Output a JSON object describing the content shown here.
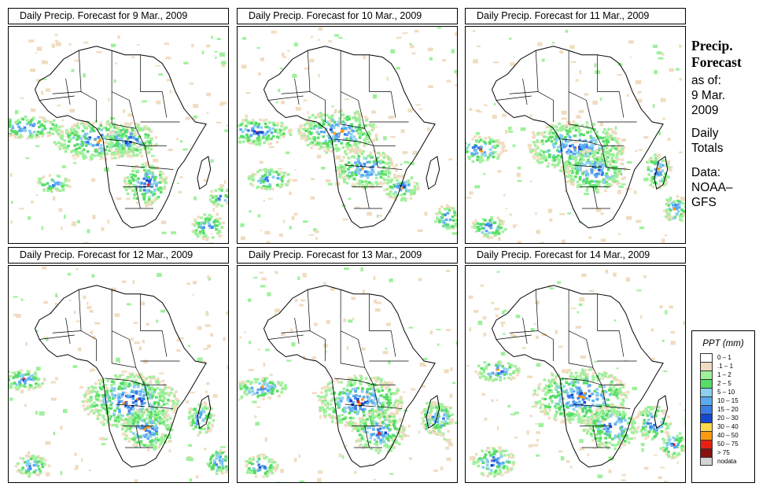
{
  "panels": [
    {
      "title": "Daily Precip. Forecast for  9 Mar., 2009"
    },
    {
      "title": "Daily Precip. Forecast for  10 Mar., 2009"
    },
    {
      "title": "Daily Precip. Forecast for  11 Mar., 2009"
    },
    {
      "title": "Daily Precip. Forecast for  12 Mar., 2009"
    },
    {
      "title": "Daily Precip. Forecast for  13 Mar., 2009"
    },
    {
      "title": "Daily Precip. Forecast for  14 Mar., 2009"
    }
  ],
  "sidebar": {
    "heading_line1": "Precip.",
    "heading_line2": "Forecast",
    "asof_line1": "as of:",
    "asof_line2": "9 Mar.",
    "asof_line3": "2009",
    "type_line1": "Daily",
    "type_line2": "Totals",
    "source_line1": "Data:",
    "source_line2": "NOAA–",
    "source_line3": "GFS"
  },
  "legend": {
    "title": "PPT (mm)",
    "entries": [
      {
        "label": "0 – 1",
        "color": "#ffffff"
      },
      {
        "label": ".1 – 1",
        "color": "#f0dcc0"
      },
      {
        "label": "1 – 2",
        "color": "#9ef09a"
      },
      {
        "label": "2 – 5",
        "color": "#55dd66"
      },
      {
        "label": "5 – 10",
        "color": "#8ccfee"
      },
      {
        "label": "10 – 15",
        "color": "#5aaaf0"
      },
      {
        "label": "15 – 20",
        "color": "#3a7ee8"
      },
      {
        "label": "20 – 30",
        "color": "#1448d0"
      },
      {
        "label": "30 – 40",
        "color": "#ffd84a"
      },
      {
        "label": "40 – 50",
        "color": "#ff9a10"
      },
      {
        "label": "50 – 75",
        "color": "#e82010"
      },
      {
        "label": "> 75",
        "color": "#8a1010"
      },
      {
        "label": "nodata",
        "color": "#d4d4d4"
      }
    ]
  }
}
